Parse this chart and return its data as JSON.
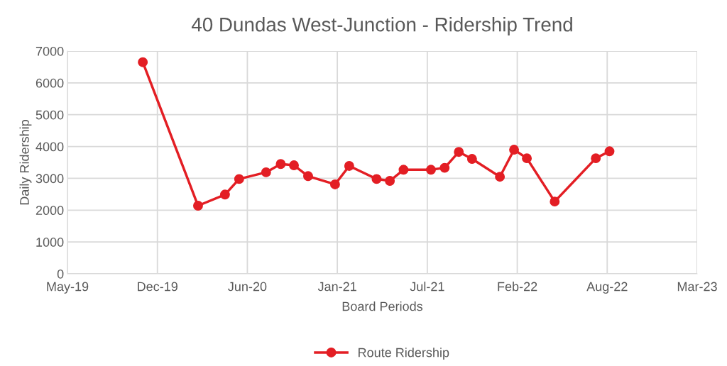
{
  "chart_data": {
    "type": "line",
    "title": "40 Dundas West-Junction - Ridership Trend",
    "xlabel": "Board Periods",
    "ylabel": "Daily Ridership",
    "x": [
      "2019-11-06",
      "2020-03-06",
      "2020-05-04",
      "2020-06-04",
      "2020-08-02",
      "2020-09-03",
      "2020-10-02",
      "2020-11-02",
      "2020-12-31",
      "2021-01-31",
      "2021-04-01",
      "2021-04-30",
      "2021-05-30",
      "2021-07-29",
      "2021-08-28",
      "2021-09-28",
      "2021-10-27",
      "2021-12-27",
      "2022-01-27",
      "2022-02-24",
      "2022-04-26",
      "2022-07-25",
      "2022-08-24"
    ],
    "series": [
      {
        "name": "Route Ridership",
        "color": "#e31e24",
        "values": [
          6650,
          2140,
          2490,
          2980,
          3190,
          3450,
          3410,
          3070,
          2810,
          3390,
          2980,
          2920,
          3270,
          3270,
          3330,
          3830,
          3610,
          3050,
          3900,
          3630,
          2270,
          3630,
          3850
        ]
      }
    ],
    "xlim": [
      "2019-05-25",
      "2023-03-04"
    ],
    "xticks": [
      {
        "value": "2019-05-25",
        "label": "May-19"
      },
      {
        "value": "2019-12-08",
        "label": "Dec-19"
      },
      {
        "value": "2020-06-22",
        "label": "Jun-20"
      },
      {
        "value": "2021-01-05",
        "label": "Jan-21"
      },
      {
        "value": "2021-07-21",
        "label": "Jul-21"
      },
      {
        "value": "2022-02-03",
        "label": "Feb-22"
      },
      {
        "value": "2022-08-19",
        "label": "Aug-22"
      },
      {
        "value": "2023-03-04",
        "label": "Mar-23"
      }
    ],
    "ylim": [
      0,
      7000
    ],
    "yticks": [
      0,
      1000,
      2000,
      3000,
      4000,
      5000,
      6000,
      7000
    ],
    "grid": true,
    "legend": "bottom",
    "marker": "circle",
    "line_style": "solid"
  }
}
